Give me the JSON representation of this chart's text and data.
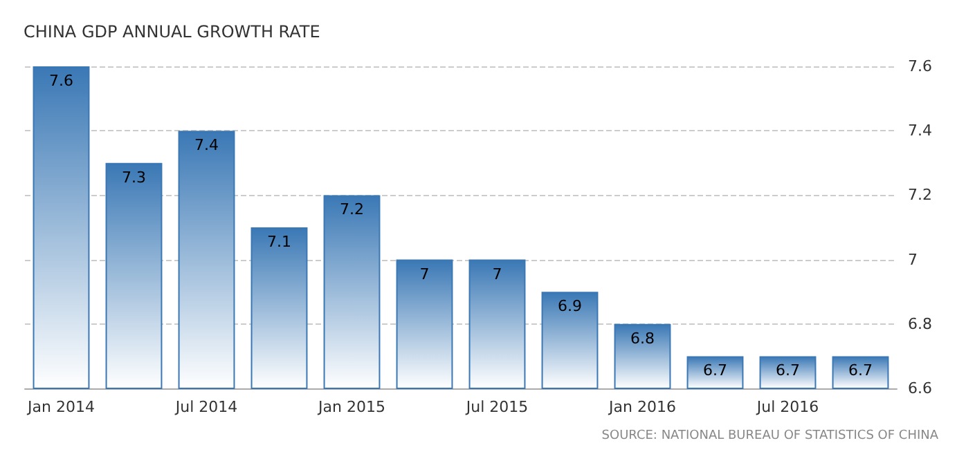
{
  "chart_data": {
    "type": "bar",
    "title": "CHINA GDP ANNUAL GROWTH RATE",
    "categories": [
      "Jan 2014",
      null,
      "Jul 2014",
      null,
      "Jan 2015",
      null,
      "Jul 2015",
      null,
      "Jan 2016",
      null,
      "Jul 2016",
      null
    ],
    "values": [
      7.6,
      7.3,
      7.4,
      7.1,
      7.2,
      7,
      7,
      6.9,
      6.8,
      6.7,
      6.7,
      6.7
    ],
    "color": "#3a78b5",
    "ylim": [
      6.6,
      7.6
    ],
    "yticks": [
      6.6,
      6.8,
      7,
      7.2,
      7.4,
      7.6
    ],
    "grid": "y",
    "data_labels": true,
    "annotations": [
      "SOURCE: NATIONAL BUREAU OF STATISTICS OF CHINA"
    ]
  }
}
